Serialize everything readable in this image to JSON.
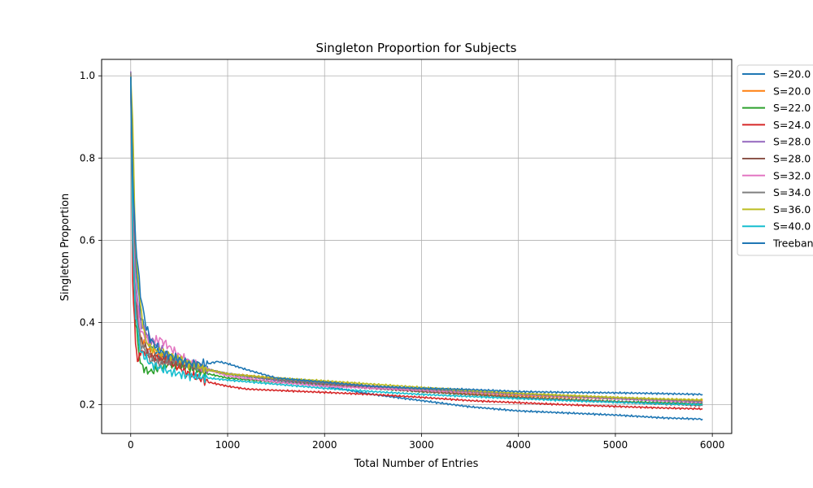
{
  "chart_data": {
    "type": "line",
    "title": "Singleton Proportion for Subjects",
    "xlabel": "Total Number of Entries",
    "ylabel": "Singleton Proportion",
    "xlim": [
      -300,
      6200
    ],
    "ylim": [
      0.13,
      1.04
    ],
    "xticks": [
      0,
      1000,
      2000,
      3000,
      4000,
      5000,
      6000
    ],
    "xtick_labels": [
      "0",
      "1000",
      "2000",
      "3000",
      "4000",
      "5000",
      "6000"
    ],
    "yticks": [
      0.2,
      0.4,
      0.6,
      0.8,
      1.0
    ],
    "ytick_labels": [
      "0.2",
      "0.4",
      "0.6",
      "0.8",
      "1.0"
    ],
    "grid": true,
    "legend_position": "upper-right-outside",
    "series": [
      {
        "name": "S=20.0",
        "color": "#1f77b4",
        "x": [
          0,
          20,
          50,
          100,
          200,
          300,
          400,
          500,
          600,
          800,
          1000,
          1500,
          2000,
          2500,
          3000,
          3500,
          4000,
          4500,
          5000,
          5500,
          5900
        ],
        "y": [
          1.0,
          0.78,
          0.55,
          0.42,
          0.34,
          0.32,
          0.31,
          0.305,
          0.3,
          0.285,
          0.275,
          0.26,
          0.245,
          0.225,
          0.21,
          0.195,
          0.185,
          0.18,
          0.175,
          0.168,
          0.165
        ]
      },
      {
        "name": "S=20.0",
        "color": "#ff7f0e",
        "x": [
          0,
          20,
          50,
          100,
          200,
          300,
          400,
          500,
          600,
          800,
          1000,
          1500,
          2000,
          2500,
          3000,
          3500,
          4000,
          4500,
          5000,
          5500,
          5900
        ],
        "y": [
          1.0,
          0.65,
          0.45,
          0.36,
          0.33,
          0.32,
          0.31,
          0.3,
          0.295,
          0.285,
          0.275,
          0.265,
          0.255,
          0.245,
          0.235,
          0.228,
          0.222,
          0.218,
          0.215,
          0.212,
          0.21
        ]
      },
      {
        "name": "S=22.0",
        "color": "#2ca02c",
        "x": [
          0,
          20,
          50,
          100,
          150,
          200,
          300,
          400,
          500,
          600,
          800,
          1000,
          1500,
          2000,
          2500,
          3000,
          3500,
          4000,
          4500,
          5000,
          5500,
          5900
        ],
        "y": [
          1.0,
          0.6,
          0.4,
          0.3,
          0.285,
          0.28,
          0.29,
          0.3,
          0.295,
          0.29,
          0.275,
          0.265,
          0.255,
          0.25,
          0.24,
          0.232,
          0.225,
          0.218,
          0.213,
          0.208,
          0.205,
          0.202
        ]
      },
      {
        "name": "S=24.0",
        "color": "#d62728",
        "x": [
          0,
          20,
          50,
          70,
          100,
          200,
          300,
          400,
          500,
          600,
          700,
          800,
          1000,
          1200,
          1500,
          2000,
          2500,
          3000,
          3500,
          4000,
          4500,
          5000,
          5500,
          5900
        ],
        "y": [
          1.0,
          0.5,
          0.35,
          0.3,
          0.33,
          0.32,
          0.31,
          0.305,
          0.29,
          0.275,
          0.265,
          0.255,
          0.245,
          0.238,
          0.235,
          0.23,
          0.225,
          0.218,
          0.21,
          0.205,
          0.2,
          0.196,
          0.192,
          0.19
        ]
      },
      {
        "name": "S=28.0",
        "color": "#9467bd",
        "x": [
          0,
          20,
          50,
          100,
          200,
          300,
          400,
          500,
          600,
          800,
          1000,
          1500,
          2000,
          2500,
          3000,
          3500,
          4000,
          4500,
          5000,
          5500,
          5900
        ],
        "y": [
          1.0,
          0.7,
          0.5,
          0.4,
          0.36,
          0.34,
          0.32,
          0.31,
          0.3,
          0.285,
          0.275,
          0.26,
          0.25,
          0.243,
          0.237,
          0.232,
          0.226,
          0.22,
          0.215,
          0.21,
          0.205
        ]
      },
      {
        "name": "S=28.0",
        "color": "#8c564b",
        "x": [
          0,
          20,
          50,
          100,
          200,
          300,
          400,
          500,
          600,
          800,
          1000,
          1500,
          2000,
          2500,
          3000,
          3500,
          4000,
          4500,
          5000,
          5500,
          5900
        ],
        "y": [
          1.0,
          0.68,
          0.46,
          0.36,
          0.32,
          0.31,
          0.305,
          0.3,
          0.295,
          0.285,
          0.275,
          0.262,
          0.25,
          0.24,
          0.232,
          0.225,
          0.218,
          0.212,
          0.207,
          0.202,
          0.198
        ]
      },
      {
        "name": "S=32.0",
        "color": "#e377c2",
        "x": [
          0,
          20,
          50,
          100,
          200,
          300,
          400,
          500,
          600,
          800,
          1000,
          1500,
          2000,
          2500,
          3000,
          3500,
          4000,
          4500,
          5000,
          5500,
          5900
        ],
        "y": [
          1.0,
          0.66,
          0.48,
          0.38,
          0.35,
          0.36,
          0.34,
          0.32,
          0.305,
          0.285,
          0.27,
          0.255,
          0.245,
          0.24,
          0.235,
          0.23,
          0.225,
          0.22,
          0.215,
          0.21,
          0.207
        ]
      },
      {
        "name": "S=34.0",
        "color": "#7f7f7f",
        "x": [
          0,
          20,
          50,
          100,
          200,
          300,
          400,
          500,
          600,
          800,
          1000,
          1500,
          2000,
          2500,
          3000,
          3500,
          4000,
          4500,
          5000,
          5500,
          5900
        ],
        "y": [
          1.0,
          0.62,
          0.44,
          0.35,
          0.31,
          0.3,
          0.305,
          0.31,
          0.3,
          0.285,
          0.275,
          0.262,
          0.252,
          0.245,
          0.238,
          0.232,
          0.226,
          0.221,
          0.216,
          0.212,
          0.208
        ]
      },
      {
        "name": "S=36.0",
        "color": "#bcbd22",
        "x": [
          0,
          20,
          50,
          100,
          150,
          200,
          300,
          400,
          500,
          600,
          800,
          1000,
          1500,
          2000,
          2500,
          3000,
          3500,
          4000,
          4500,
          5000,
          5500,
          5900
        ],
        "y": [
          1.0,
          0.9,
          0.58,
          0.44,
          0.36,
          0.34,
          0.33,
          0.32,
          0.31,
          0.3,
          0.285,
          0.275,
          0.265,
          0.258,
          0.25,
          0.242,
          0.235,
          0.228,
          0.223,
          0.218,
          0.214,
          0.212
        ]
      },
      {
        "name": "S=40.0",
        "color": "#17becf",
        "x": [
          0,
          20,
          50,
          100,
          200,
          300,
          400,
          500,
          600,
          800,
          1000,
          1500,
          2000,
          2500,
          3000,
          3500,
          4000,
          4500,
          5000,
          5500,
          5900
        ],
        "y": [
          1.0,
          0.6,
          0.42,
          0.33,
          0.3,
          0.29,
          0.28,
          0.275,
          0.27,
          0.265,
          0.26,
          0.25,
          0.24,
          0.232,
          0.225,
          0.22,
          0.215,
          0.21,
          0.206,
          0.202,
          0.2
        ]
      },
      {
        "name": "Treebank",
        "color": "#1f77b4",
        "x": [
          0,
          20,
          50,
          100,
          150,
          200,
          300,
          400,
          500,
          600,
          700,
          800,
          900,
          1000,
          1200,
          1500,
          2000,
          2500,
          3000,
          3500,
          4000,
          4500,
          5000,
          5500,
          5900
        ],
        "y": [
          1.0,
          0.75,
          0.6,
          0.47,
          0.4,
          0.36,
          0.33,
          0.32,
          0.31,
          0.3,
          0.3,
          0.3,
          0.305,
          0.3,
          0.285,
          0.265,
          0.255,
          0.245,
          0.24,
          0.237,
          0.232,
          0.23,
          0.229,
          0.227,
          0.225
        ]
      }
    ]
  }
}
